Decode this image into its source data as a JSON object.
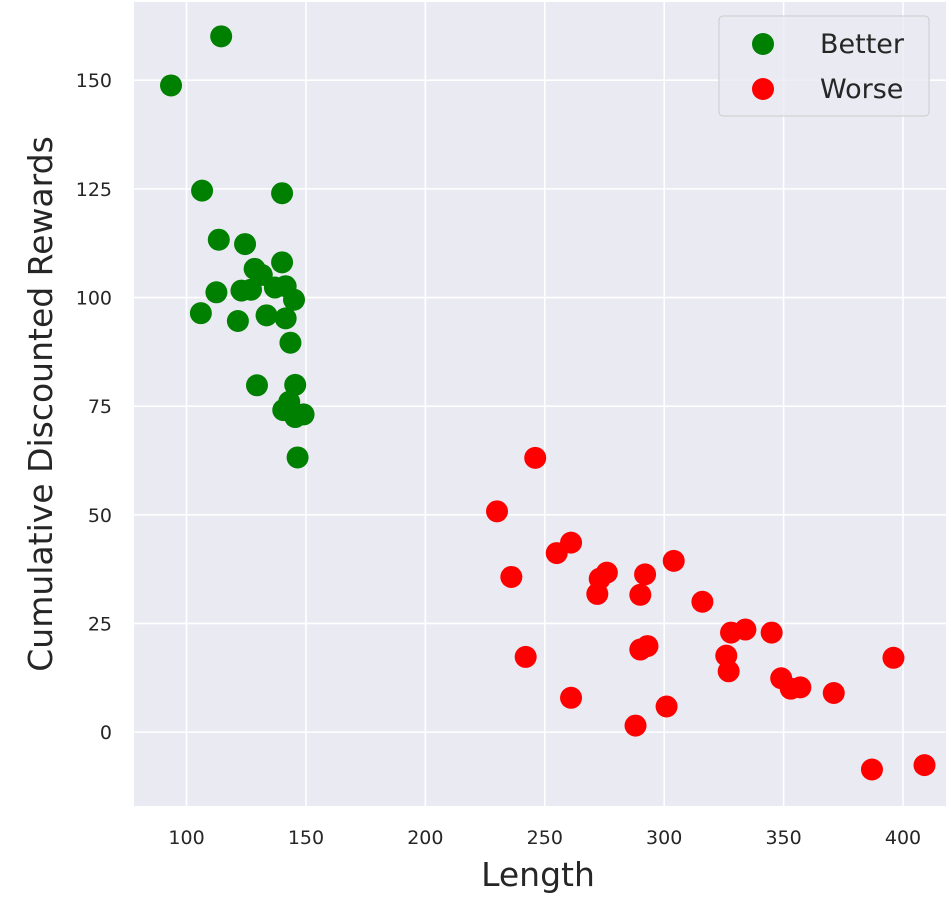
{
  "chart_data": {
    "type": "scatter",
    "xlabel": "Length",
    "ylabel": "Cumulative Discounted Rewards",
    "xlim": [
      78,
      418
    ],
    "ylim": [
      -17,
      168
    ],
    "xticks": [
      100,
      150,
      200,
      250,
      300,
      350,
      400
    ],
    "yticks": [
      0,
      25,
      50,
      75,
      100,
      125,
      150
    ],
    "grid": true,
    "legend_position": "top-right",
    "series": [
      {
        "name": "Better",
        "color": "#008000",
        "points": [
          [
            93.5,
            148.8
          ],
          [
            114.5,
            160.1
          ],
          [
            106.5,
            124.6
          ],
          [
            140.0,
            124.0
          ],
          [
            113.5,
            113.3
          ],
          [
            124.5,
            112.3
          ],
          [
            140.0,
            108.1
          ],
          [
            128.5,
            106.6
          ],
          [
            131.5,
            105.2
          ],
          [
            137.0,
            102.3
          ],
          [
            141.5,
            102.6
          ],
          [
            123.0,
            101.6
          ],
          [
            127.0,
            101.8
          ],
          [
            112.5,
            101.2
          ],
          [
            145.0,
            99.5
          ],
          [
            106.0,
            96.4
          ],
          [
            121.5,
            94.6
          ],
          [
            133.5,
            95.9
          ],
          [
            141.5,
            95.2
          ],
          [
            143.5,
            89.6
          ],
          [
            129.5,
            79.8
          ],
          [
            145.5,
            79.9
          ],
          [
            143.0,
            76.0
          ],
          [
            140.5,
            74.1
          ],
          [
            145.5,
            72.5
          ],
          [
            149.0,
            73.1
          ],
          [
            146.5,
            63.2
          ]
        ]
      },
      {
        "name": "Worse",
        "color": "#ff0000",
        "points": [
          [
            246.0,
            63.1
          ],
          [
            230.0,
            50.8
          ],
          [
            261.0,
            43.6
          ],
          [
            255.0,
            41.2
          ],
          [
            304.0,
            39.4
          ],
          [
            276.0,
            36.7
          ],
          [
            273.0,
            35.3
          ],
          [
            292.0,
            36.3
          ],
          [
            236.0,
            35.7
          ],
          [
            272.0,
            31.8
          ],
          [
            290.0,
            31.6
          ],
          [
            316.0,
            30.0
          ],
          [
            334.0,
            23.6
          ],
          [
            328.0,
            22.9
          ],
          [
            345.0,
            22.9
          ],
          [
            293.0,
            19.8
          ],
          [
            290.0,
            19.0
          ],
          [
            242.0,
            17.3
          ],
          [
            326.0,
            17.6
          ],
          [
            396.0,
            17.1
          ],
          [
            327.0,
            14.0
          ],
          [
            349.0,
            12.4
          ],
          [
            353.0,
            10.0
          ],
          [
            357.0,
            10.3
          ],
          [
            371.0,
            9.0
          ],
          [
            261.0,
            7.9
          ],
          [
            301.0,
            5.9
          ],
          [
            288.0,
            1.5
          ],
          [
            387.0,
            -8.6
          ],
          [
            409.0,
            -7.6
          ]
        ]
      }
    ]
  }
}
